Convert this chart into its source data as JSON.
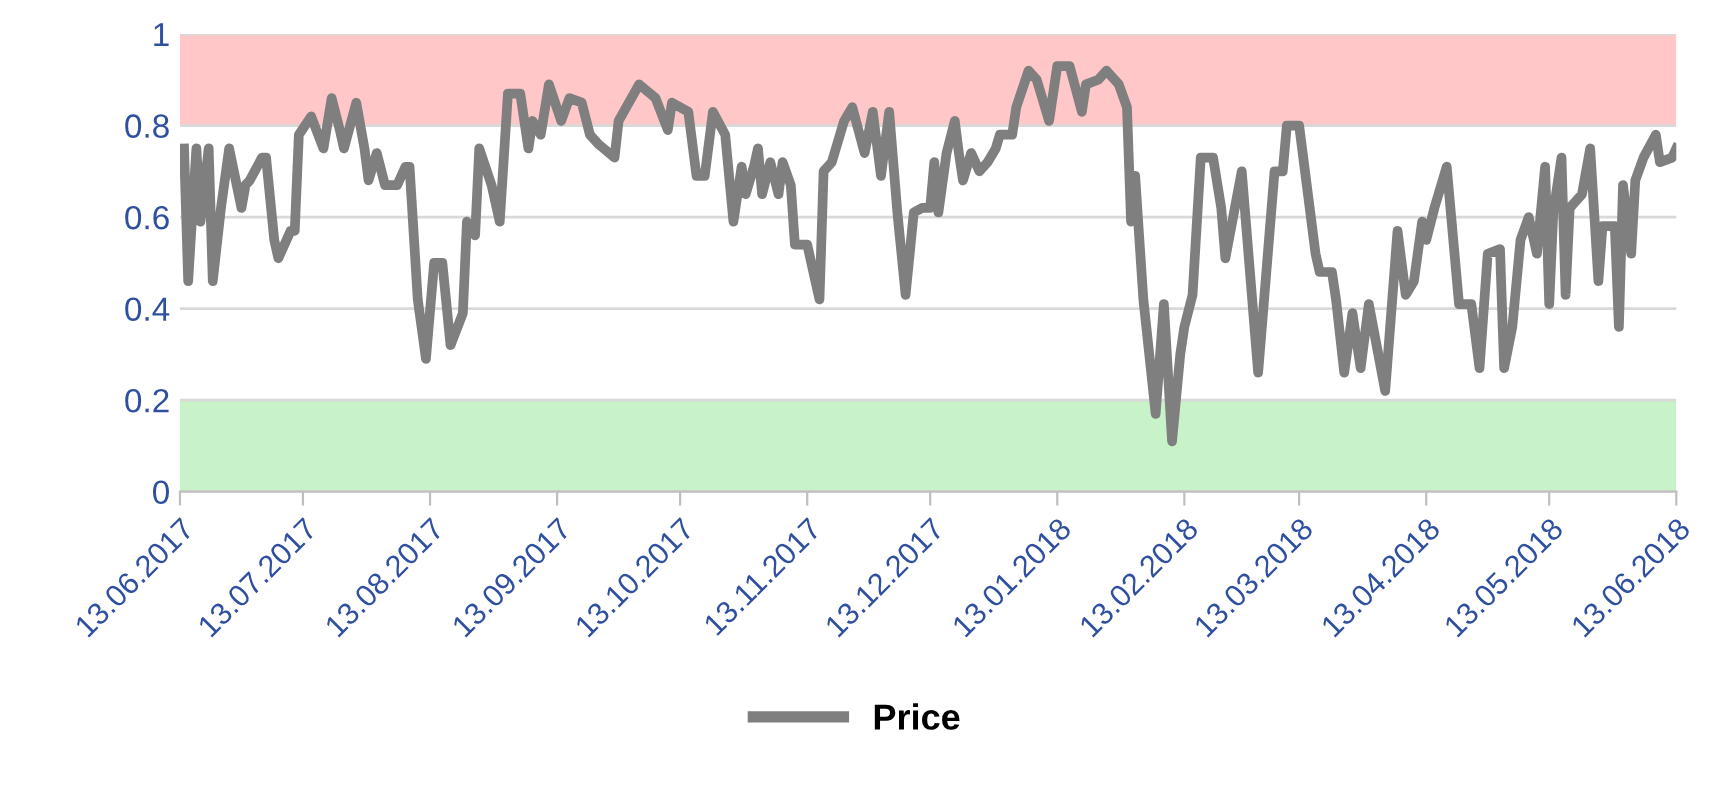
{
  "chart_data": {
    "type": "line",
    "xlim": [
      "2017-06-13",
      "2018-06-13"
    ],
    "ylim": [
      0,
      1
    ],
    "xticks": [
      {
        "value": "2017-06-13",
        "label": "13.06.2017"
      },
      {
        "value": "2017-07-13",
        "label": "13.07.2017"
      },
      {
        "value": "2017-08-13",
        "label": "13.08.2017"
      },
      {
        "value": "2017-09-13",
        "label": "13.09.2017"
      },
      {
        "value": "2017-10-13",
        "label": "13.10.2017"
      },
      {
        "value": "2017-11-13",
        "label": "13.11.2017"
      },
      {
        "value": "2017-12-13",
        "label": "13.12.2017"
      },
      {
        "value": "2018-01-13",
        "label": "13.01.2018"
      },
      {
        "value": "2018-02-13",
        "label": "13.02.2018"
      },
      {
        "value": "2018-03-13",
        "label": "13.03.2018"
      },
      {
        "value": "2018-04-13",
        "label": "13.04.2018"
      },
      {
        "value": "2018-05-13",
        "label": "13.05.2018"
      },
      {
        "value": "2018-06-13",
        "label": "13.06.2018"
      }
    ],
    "yticks": [
      0,
      0.2,
      0.4,
      0.6,
      0.8,
      1
    ],
    "grid": "y",
    "legend": "bottom",
    "marker": "none",
    "line_style": "solid",
    "bands": [
      {
        "axis": "y",
        "from": 0.8,
        "to": 1,
        "color": "#ffc7c7"
      },
      {
        "axis": "y",
        "from": 0,
        "to": 0.2,
        "color": "#c8f2c8"
      }
    ],
    "series": [
      {
        "name": "Price",
        "color": "#7f7f7f",
        "x": [
          "2017-06-14",
          "2017-06-15",
          "2017-06-17",
          "2017-06-18",
          "2017-06-20",
          "2017-06-21",
          "2017-06-23",
          "2017-06-25",
          "2017-06-28",
          "2017-06-29",
          "2017-06-30",
          "2017-07-03",
          "2017-07-04",
          "2017-07-06",
          "2017-07-07",
          "2017-07-10",
          "2017-07-11",
          "2017-07-12",
          "2017-07-15",
          "2017-07-18",
          "2017-07-20",
          "2017-07-22",
          "2017-07-23",
          "2017-07-26",
          "2017-07-28",
          "2017-07-29",
          "2017-07-31",
          "2017-08-02",
          "2017-08-05",
          "2017-08-07",
          "2017-08-08",
          "2017-08-10",
          "2017-08-12",
          "2017-08-14",
          "2017-08-16",
          "2017-08-18",
          "2017-08-21",
          "2017-08-22",
          "2017-08-24",
          "2017-08-25",
          "2017-08-28",
          "2017-08-30",
          "2017-09-01",
          "2017-09-04",
          "2017-09-06",
          "2017-09-07",
          "2017-09-09",
          "2017-09-11",
          "2017-09-14",
          "2017-09-16",
          "2017-09-19",
          "2017-09-21",
          "2017-09-23",
          "2017-09-27",
          "2017-09-28",
          "2017-10-03",
          "2017-10-07",
          "2017-10-10",
          "2017-10-11",
          "2017-10-15",
          "2017-10-17",
          "2017-10-19",
          "2017-10-21",
          "2017-10-24",
          "2017-10-26",
          "2017-10-28",
          "2017-10-29",
          "2017-10-31",
          "2017-11-01",
          "2017-11-02",
          "2017-11-04",
          "2017-11-06",
          "2017-11-07",
          "2017-11-09",
          "2017-11-10",
          "2017-11-13",
          "2017-11-16",
          "2017-11-17",
          "2017-11-19",
          "2017-11-22",
          "2017-11-24",
          "2017-11-27",
          "2017-11-29",
          "2017-12-01",
          "2017-12-03",
          "2017-12-05",
          "2017-12-07",
          "2017-12-09",
          "2017-12-11",
          "2017-12-13",
          "2017-12-14",
          "2017-12-15",
          "2017-12-17",
          "2017-12-19",
          "2017-12-20",
          "2017-12-21",
          "2017-12-23",
          "2017-12-25",
          "2017-12-27",
          "2017-12-29",
          "2017-12-30",
          "2018-01-02",
          "2018-01-03",
          "2018-01-06",
          "2018-01-08",
          "2018-01-11",
          "2018-01-13",
          "2018-01-16",
          "2018-01-19",
          "2018-01-20",
          "2018-01-23",
          "2018-01-25",
          "2018-01-28",
          "2018-01-30",
          "2018-01-31",
          "2018-02-01",
          "2018-02-03",
          "2018-02-06",
          "2018-02-08",
          "2018-02-10",
          "2018-02-12",
          "2018-02-13",
          "2018-02-15",
          "2018-02-17",
          "2018-02-20",
          "2018-02-22",
          "2018-02-23",
          "2018-02-27",
          "2018-03-03",
          "2018-03-06",
          "2018-03-07",
          "2018-03-09",
          "2018-03-10",
          "2018-03-13",
          "2018-03-17",
          "2018-03-18",
          "2018-03-21",
          "2018-03-22",
          "2018-03-24",
          "2018-03-26",
          "2018-03-28",
          "2018-03-30",
          "2018-04-03",
          "2018-04-06",
          "2018-04-08",
          "2018-04-10",
          "2018-04-12",
          "2018-04-13",
          "2018-04-15",
          "2018-04-18",
          "2018-04-21",
          "2018-04-24",
          "2018-04-26",
          "2018-04-28",
          "2018-05-01",
          "2018-05-02",
          "2018-05-04",
          "2018-05-06",
          "2018-05-08",
          "2018-05-10",
          "2018-05-12",
          "2018-05-13",
          "2018-05-14",
          "2018-05-16",
          "2018-05-17",
          "2018-05-18",
          "2018-05-21",
          "2018-05-23",
          "2018-05-25",
          "2018-05-26",
          "2018-05-29",
          "2018-05-30",
          "2018-05-31",
          "2018-06-02",
          "2018-06-03",
          "2018-06-05",
          "2018-06-08",
          "2018-06-09",
          "2018-06-12",
          "2018-06-13"
        ],
        "values": [
          0.75,
          0.46,
          0.75,
          0.59,
          0.75,
          0.46,
          0.62,
          0.75,
          0.62,
          0.67,
          0.68,
          0.73,
          0.73,
          0.55,
          0.51,
          0.57,
          0.57,
          0.78,
          0.82,
          0.75,
          0.86,
          0.79,
          0.75,
          0.85,
          0.75,
          0.68,
          0.74,
          0.67,
          0.67,
          0.71,
          0.71,
          0.42,
          0.29,
          0.5,
          0.5,
          0.32,
          0.39,
          0.59,
          0.56,
          0.75,
          0.67,
          0.59,
          0.87,
          0.87,
          0.75,
          0.81,
          0.78,
          0.89,
          0.81,
          0.86,
          0.85,
          0.78,
          0.76,
          0.73,
          0.81,
          0.89,
          0.86,
          0.79,
          0.85,
          0.83,
          0.69,
          0.69,
          0.83,
          0.78,
          0.59,
          0.71,
          0.65,
          0.71,
          0.75,
          0.65,
          0.72,
          0.65,
          0.72,
          0.67,
          0.54,
          0.54,
          0.42,
          0.7,
          0.72,
          0.81,
          0.84,
          0.74,
          0.83,
          0.69,
          0.83,
          0.61,
          0.43,
          0.61,
          0.62,
          0.62,
          0.72,
          0.61,
          0.74,
          0.81,
          0.74,
          0.68,
          0.74,
          0.7,
          0.72,
          0.75,
          0.78,
          0.78,
          0.84,
          0.92,
          0.9,
          0.81,
          0.93,
          0.93,
          0.83,
          0.89,
          0.9,
          0.92,
          0.89,
          0.84,
          0.59,
          0.69,
          0.42,
          0.17,
          0.41,
          0.11,
          0.3,
          0.36,
          0.43,
          0.73,
          0.73,
          0.62,
          0.51,
          0.7,
          0.26,
          0.59,
          0.7,
          0.7,
          0.8,
          0.8,
          0.52,
          0.48,
          0.48,
          0.42,
          0.26,
          0.39,
          0.27,
          0.41,
          0.22,
          0.57,
          0.43,
          0.46,
          0.59,
          0.55,
          0.62,
          0.71,
          0.41,
          0.41,
          0.27,
          0.52,
          0.53,
          0.27,
          0.36,
          0.55,
          0.6,
          0.52,
          0.71,
          0.41,
          0.61,
          0.73,
          0.43,
          0.62,
          0.65,
          0.75,
          0.46,
          0.58,
          0.58,
          0.36,
          0.67,
          0.52,
          0.68,
          0.73,
          0.78,
          0.72,
          0.73,
          0.75
        ]
      }
    ]
  }
}
